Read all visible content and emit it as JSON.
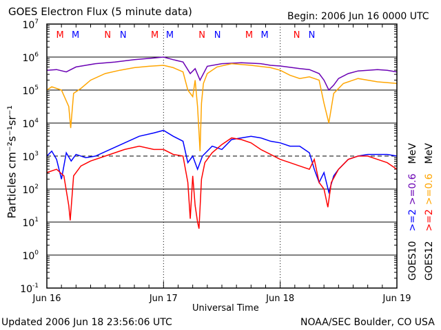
{
  "chart_data": {
    "type": "line",
    "title": "GOES Electron Flux (5 minute data)",
    "begin": "Begin: 2006 Jun 16 0000 UTC",
    "xlabel": "Universal Time",
    "ylabel": "Particles cm⁻²s⁻¹sr⁻¹",
    "x_unit": "hours since 2006 Jun 16 0000 UTC",
    "xlim": [
      0,
      72
    ],
    "ylim_log10": [
      -1,
      7
    ],
    "yscale": "log",
    "x_ticks": [
      {
        "h": 0,
        "label": "Jun 16"
      },
      {
        "h": 24,
        "label": "Jun 17"
      },
      {
        "h": 48,
        "label": "Jun 18"
      },
      {
        "h": 72,
        "label": "Jun 19"
      }
    ],
    "y_ticks": [
      {
        "base": "10",
        "exp": "7"
      },
      {
        "base": "10",
        "exp": "6"
      },
      {
        "base": "10",
        "exp": "5"
      },
      {
        "base": "10",
        "exp": "4"
      },
      {
        "base": "10",
        "exp": "3"
      },
      {
        "base": "10",
        "exp": "2"
      },
      {
        "base": "10",
        "exp": "1"
      },
      {
        "base": "10",
        "exp": "0"
      },
      {
        "base": "10",
        "exp": "-1"
      }
    ],
    "threshold_log10": 3,
    "grid": true,
    "markers": [
      {
        "h": 2.7,
        "label": "M",
        "color": "#ff0000"
      },
      {
        "h": 5.9,
        "label": "M",
        "color": "#0000ff"
      },
      {
        "h": 12.5,
        "label": "N",
        "color": "#ff0000"
      },
      {
        "h": 15.7,
        "label": "N",
        "color": "#0000ff"
      },
      {
        "h": 22.2,
        "label": "M",
        "color": "#ff0000"
      },
      {
        "h": 25.3,
        "label": "M",
        "color": "#0000ff"
      },
      {
        "h": 31.9,
        "label": "N",
        "color": "#ff0000"
      },
      {
        "h": 35.1,
        "label": "N",
        "color": "#0000ff"
      },
      {
        "h": 41.6,
        "label": "M",
        "color": "#ff0000"
      },
      {
        "h": 44.8,
        "label": "M",
        "color": "#0000ff"
      },
      {
        "h": 51.4,
        "label": "N",
        "color": "#ff0000"
      },
      {
        "h": 54.5,
        "label": "N",
        "color": "#0000ff"
      }
    ],
    "legend": {
      "energy_unit": "MeV",
      "goes10": "GOES10",
      "goes12": "GOES12",
      "goes10_low": ">=0.6",
      "goes12_low": ">=0.6",
      "goes10_high": ">=2",
      "goes12_high": ">=2"
    },
    "series": [
      {
        "name": "GOES10 >=0.6 MeV",
        "color": "#6a00b4",
        "h": [
          0,
          2,
          4,
          6,
          8,
          10,
          14,
          18,
          22,
          24,
          26,
          28,
          29.5,
          30.5,
          31.5,
          33,
          36,
          40,
          44,
          46,
          48,
          52,
          54,
          56,
          57,
          58,
          59,
          60,
          62,
          64,
          66,
          68,
          70,
          72
        ],
        "log10": [
          5.6,
          5.62,
          5.55,
          5.7,
          5.75,
          5.8,
          5.85,
          5.92,
          5.97,
          6.0,
          5.92,
          5.85,
          5.5,
          5.65,
          5.3,
          5.72,
          5.8,
          5.83,
          5.8,
          5.75,
          5.73,
          5.65,
          5.62,
          5.5,
          5.3,
          5.0,
          5.15,
          5.35,
          5.5,
          5.58,
          5.6,
          5.62,
          5.6,
          5.55
        ]
      },
      {
        "name": "GOES12 >=0.6 MeV",
        "color": "#ffa500",
        "h": [
          0,
          1,
          3,
          4.5,
          4.9,
          5.5,
          7,
          9,
          12,
          15,
          18,
          21,
          24,
          26,
          28,
          29,
          30,
          30.5,
          31,
          31.5,
          31.8,
          32.2,
          33,
          35,
          38,
          42,
          46,
          48,
          50,
          52,
          54,
          56,
          57,
          58,
          59,
          61,
          64,
          68,
          72
        ],
        "log10": [
          5.0,
          5.1,
          5.0,
          4.5,
          3.85,
          4.9,
          5.05,
          5.3,
          5.5,
          5.6,
          5.68,
          5.72,
          5.75,
          5.68,
          5.55,
          5.0,
          4.8,
          5.3,
          4.5,
          3.15,
          4.6,
          5.2,
          5.5,
          5.7,
          5.8,
          5.75,
          5.68,
          5.6,
          5.45,
          5.35,
          5.4,
          5.3,
          4.6,
          4.0,
          4.9,
          5.2,
          5.35,
          5.25,
          5.2
        ]
      },
      {
        "name": "GOES10 >=2 MeV",
        "color": "#0000ff",
        "h": [
          0,
          1,
          2,
          3,
          4,
          5,
          6,
          8,
          10,
          13,
          16,
          19,
          22,
          24,
          26,
          28,
          29,
          30,
          31,
          32,
          34,
          36,
          38,
          40,
          42,
          44,
          46,
          48,
          50,
          52,
          54,
          55,
          56,
          57,
          58,
          59,
          60,
          62,
          64,
          66,
          68,
          70,
          72
        ],
        "log10": [
          3.0,
          3.15,
          2.9,
          2.3,
          3.1,
          2.85,
          3.05,
          2.95,
          3.0,
          3.2,
          3.4,
          3.6,
          3.7,
          3.78,
          3.6,
          3.45,
          2.8,
          3.0,
          2.6,
          3.0,
          3.3,
          3.2,
          3.5,
          3.55,
          3.6,
          3.55,
          3.45,
          3.4,
          3.3,
          3.3,
          3.1,
          2.6,
          2.2,
          2.5,
          1.9,
          2.4,
          2.6,
          2.9,
          3.0,
          3.05,
          3.05,
          3.05,
          3.0
        ]
      },
      {
        "name": "GOES12 >=2 MeV",
        "color": "#ff0000",
        "h": [
          0,
          2,
          3.5,
          4.5,
          4.8,
          5.5,
          7,
          9,
          12,
          16,
          19,
          22,
          24,
          26,
          28,
          29,
          29.5,
          30,
          30.5,
          31,
          31.3,
          31.8,
          32.5,
          34,
          36,
          38,
          40,
          42,
          44,
          46,
          48,
          50,
          52,
          54,
          55,
          56,
          57,
          57.8,
          58.5,
          60,
          62,
          64,
          66,
          68,
          70,
          72
        ],
        "log10": [
          2.5,
          2.6,
          2.4,
          1.5,
          1.05,
          2.4,
          2.7,
          2.85,
          3.0,
          3.2,
          3.3,
          3.2,
          3.2,
          3.05,
          3.0,
          2.2,
          1.1,
          2.4,
          1.5,
          1.0,
          0.8,
          2.3,
          2.8,
          3.1,
          3.35,
          3.55,
          3.5,
          3.4,
          3.2,
          3.05,
          2.9,
          2.8,
          2.7,
          2.6,
          2.9,
          2.2,
          2.0,
          1.45,
          2.2,
          2.6,
          2.9,
          3.0,
          3.0,
          2.9,
          2.8,
          2.6
        ]
      }
    ]
  },
  "footer": {
    "updated": "Updated 2006 Jun 18 23:56:06 UTC",
    "source": "NOAA/SEC Boulder, CO USA"
  }
}
